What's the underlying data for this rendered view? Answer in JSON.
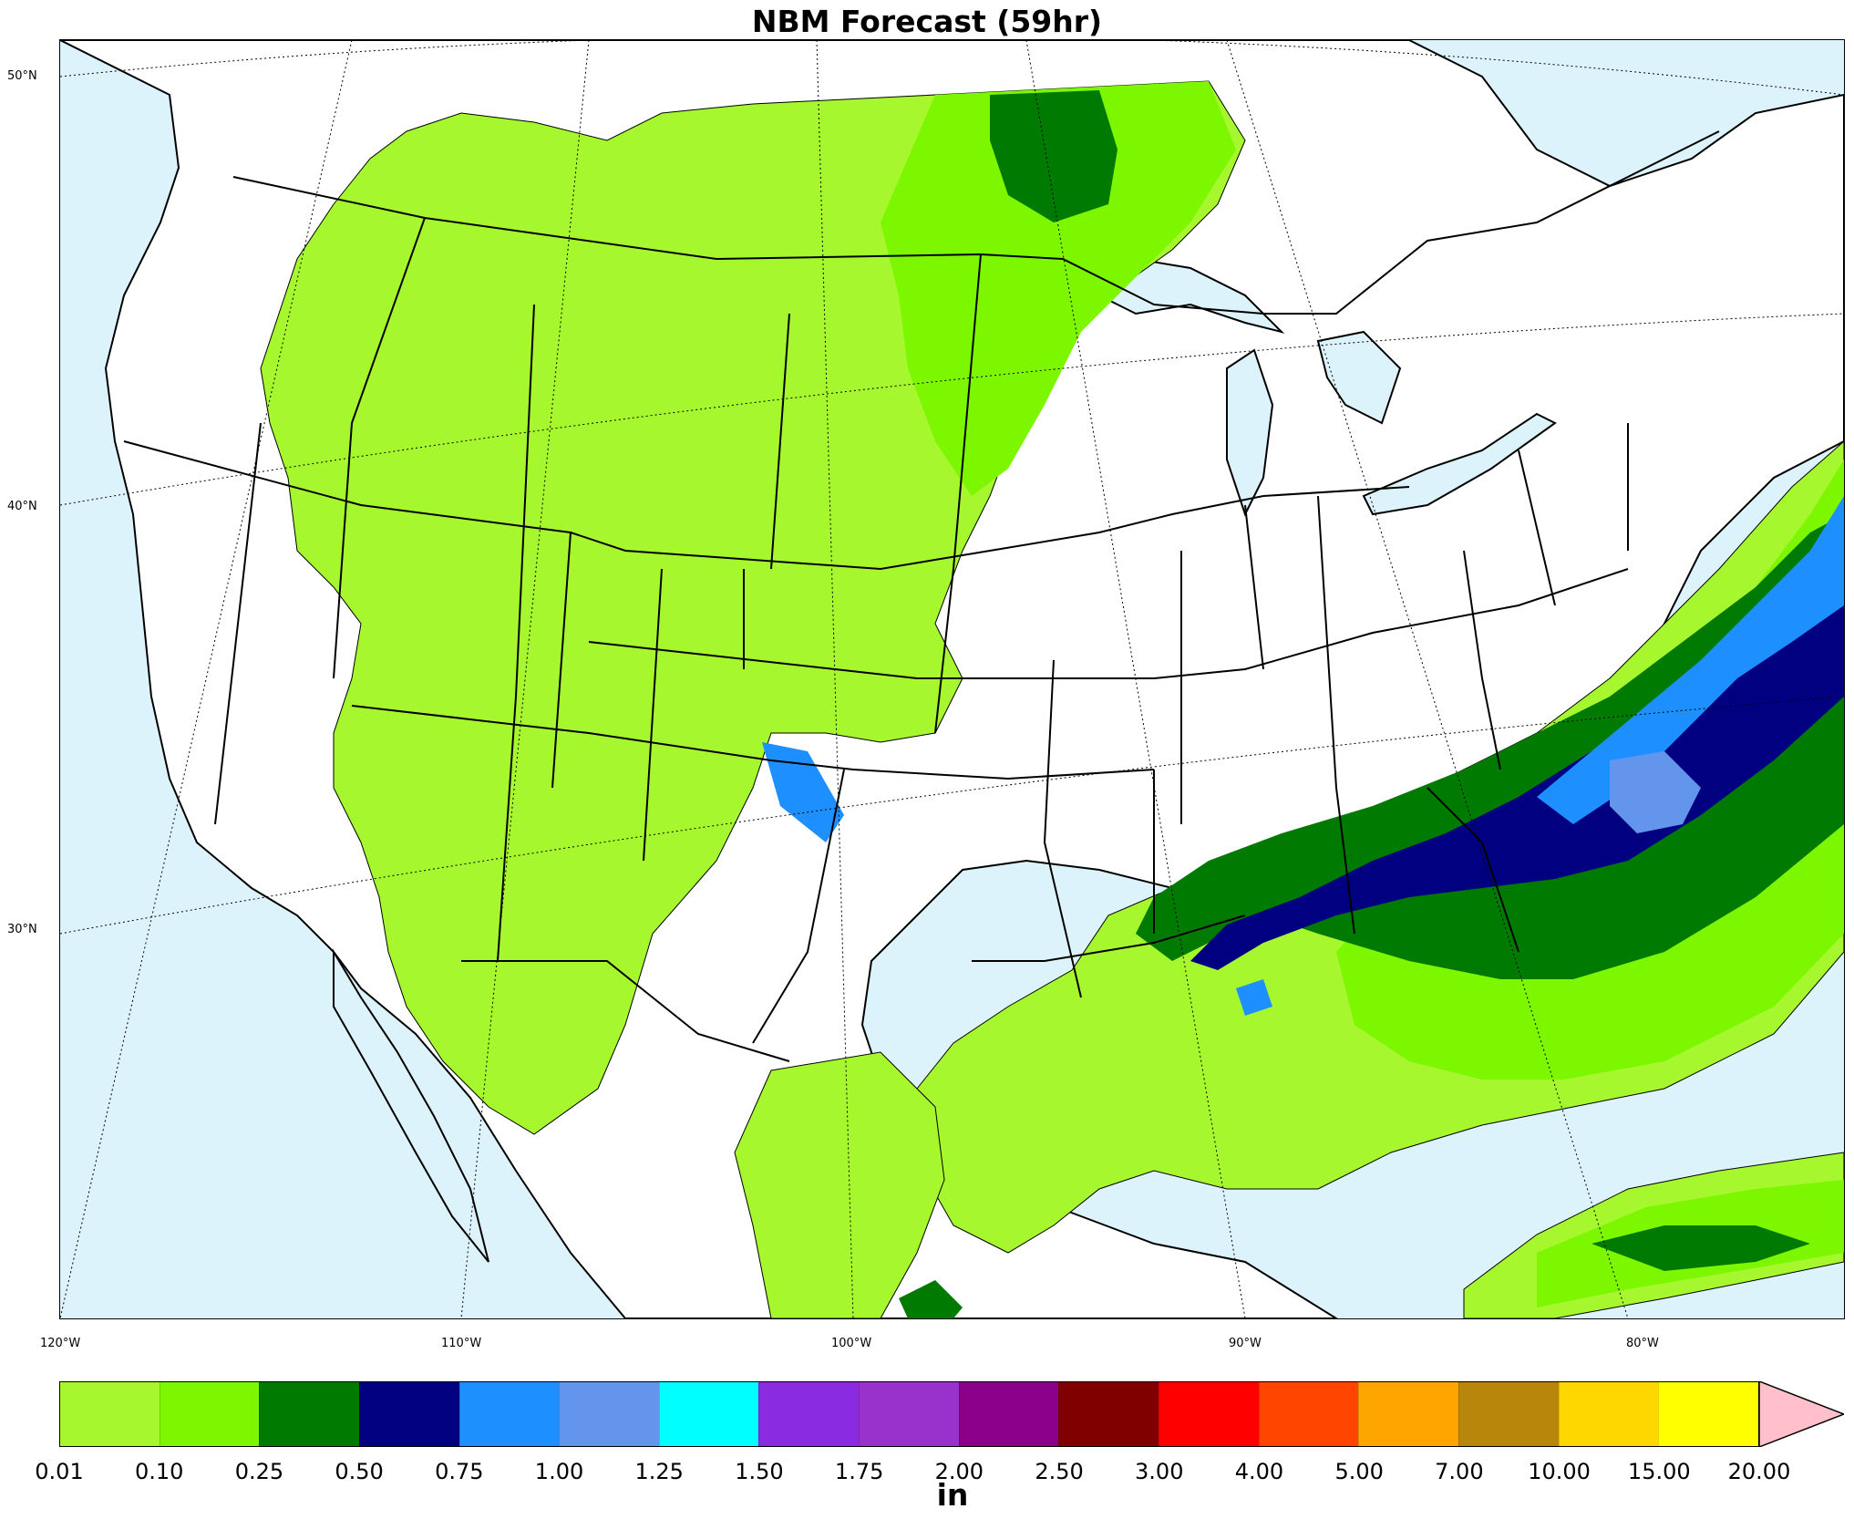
{
  "title": "NBM Forecast (59hr)",
  "map": {
    "lat_labels": [
      "50°N",
      "40°N",
      "30°N"
    ],
    "lon_labels": [
      "120°W",
      "110°W",
      "100°W",
      "90°W",
      "80°W"
    ],
    "ocean_color": "#ddf3fb",
    "land_color": "#ffffff",
    "boundary_color": "#000000"
  },
  "colorbar": {
    "unit": "in",
    "ticks": [
      "0.01",
      "0.10",
      "0.25",
      "0.50",
      "0.75",
      "1.00",
      "1.25",
      "1.50",
      "1.75",
      "2.00",
      "2.50",
      "3.00",
      "4.00",
      "5.00",
      "7.00",
      "10.00",
      "15.00",
      "20.00"
    ],
    "colors": [
      "#a6f72e",
      "#7cf700",
      "#007a00",
      "#000080",
      "#1e8fff",
      "#6495ed",
      "#00ffff",
      "#8a2be2",
      "#9932cc",
      "#8b008b",
      "#800000",
      "#ff0000",
      "#ff4500",
      "#ffa500",
      "#b8860b",
      "#ffd700",
      "#ffff00"
    ],
    "extend_color": "#ffc0cb"
  }
}
